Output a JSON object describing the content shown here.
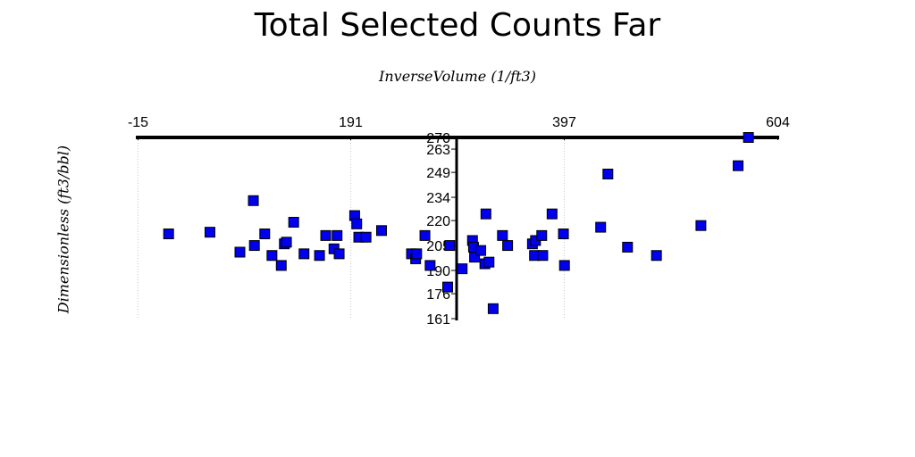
{
  "chart_data": {
    "type": "scatter",
    "title": "Total Selected Counts Far",
    "xlabel": "InverseVolume (1/ft3)",
    "ylabel": "Dimensionless (ft3/bbl)",
    "xlim": [
      -15,
      604
    ],
    "ylim": [
      161,
      270
    ],
    "x_ticks": [
      "-15",
      "191",
      "397",
      "604"
    ],
    "y_ticks": [
      "270",
      "263",
      "249",
      "234",
      "220",
      "205",
      "190",
      "176",
      "161"
    ],
    "grid": "vertical",
    "marker_color": "#0000ee",
    "series": [
      {
        "points": [
          [
            15,
            212
          ],
          [
            55,
            213
          ],
          [
            84,
            201
          ],
          [
            97,
            232
          ],
          [
            98,
            205
          ],
          [
            108,
            212
          ],
          [
            115,
            199
          ],
          [
            124,
            193
          ],
          [
            127,
            206
          ],
          [
            129,
            207
          ],
          [
            136,
            219
          ],
          [
            146,
            200
          ],
          [
            161,
            199
          ],
          [
            167,
            211
          ],
          [
            175,
            203
          ],
          [
            178,
            211
          ],
          [
            180,
            200
          ],
          [
            195,
            223
          ],
          [
            197,
            218
          ],
          [
            199,
            210
          ],
          [
            206,
            210
          ],
          [
            221,
            214
          ],
          [
            250,
            200
          ],
          [
            254,
            197
          ],
          [
            255,
            200
          ],
          [
            263,
            211
          ],
          [
            268,
            193
          ],
          [
            285,
            180
          ],
          [
            287,
            205
          ],
          [
            299,
            191
          ],
          [
            309,
            208
          ],
          [
            310,
            204
          ],
          [
            311,
            198
          ],
          [
            317,
            202
          ],
          [
            321,
            194
          ],
          [
            322,
            224
          ],
          [
            325,
            195
          ],
          [
            329,
            167
          ],
          [
            338,
            211
          ],
          [
            343,
            205
          ],
          [
            367,
            206
          ],
          [
            369,
            199
          ],
          [
            370,
            208
          ],
          [
            376,
            211
          ],
          [
            377,
            199
          ],
          [
            386,
            224
          ],
          [
            397,
            212
          ],
          [
            398,
            193
          ],
          [
            433,
            216
          ],
          [
            440,
            248
          ],
          [
            459,
            204
          ],
          [
            487,
            199
          ],
          [
            530,
            217
          ],
          [
            566,
            253
          ],
          [
            576,
            270
          ]
        ]
      }
    ]
  }
}
